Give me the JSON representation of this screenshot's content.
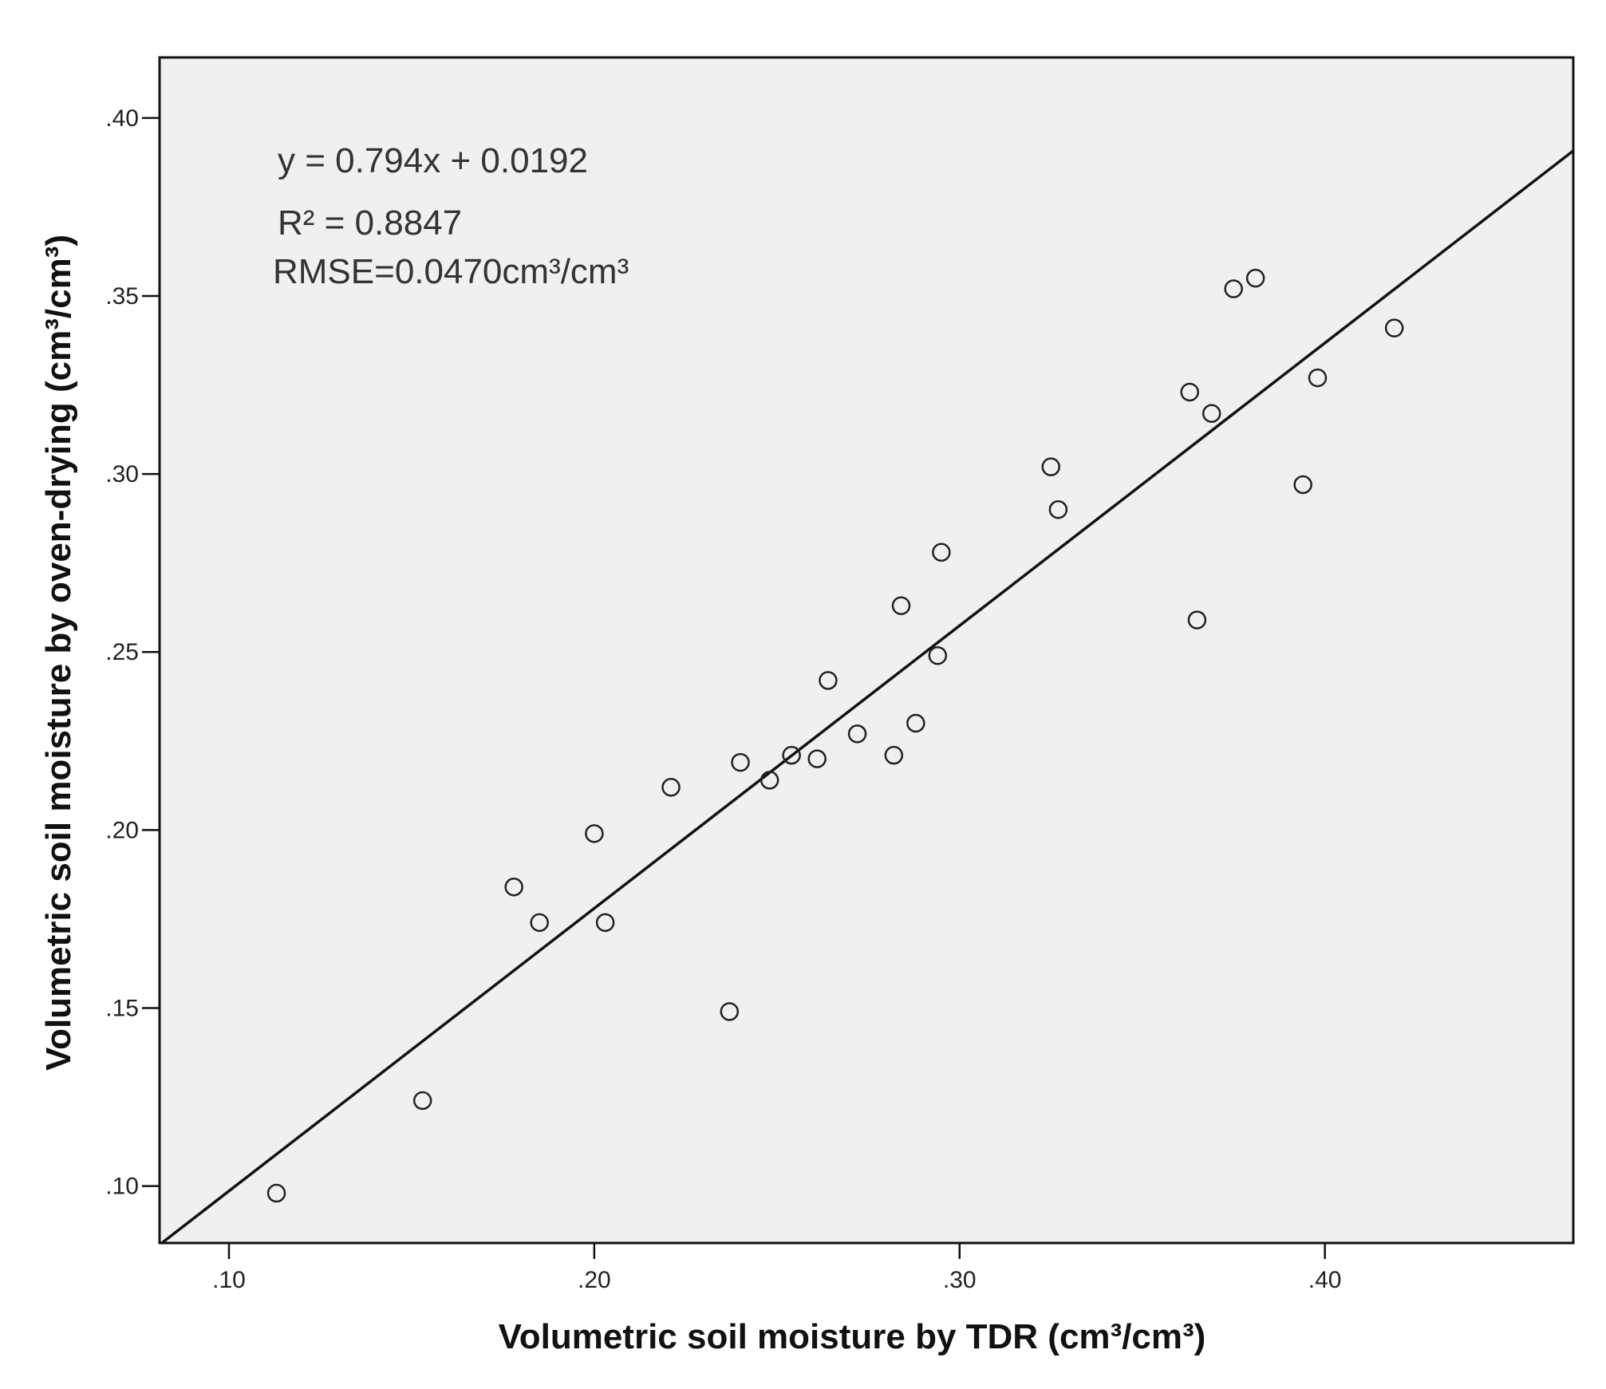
{
  "chart_data": {
    "type": "scatter",
    "title": "",
    "xlabel": "Volumetric soil moisture by TDR (cm³/cm³)",
    "ylabel": "Volumetric soil moisture by oven-drying (cm³/cm³)",
    "xlim": [
      0.081,
      0.468
    ],
    "ylim": [
      0.084,
      0.417
    ],
    "x_ticks": [
      0.1,
      0.2,
      0.3,
      0.4
    ],
    "x_tick_labels": [
      ".10",
      ".20",
      ".30",
      ".40"
    ],
    "y_ticks": [
      0.1,
      0.15,
      0.2,
      0.25,
      0.3,
      0.35,
      0.4
    ],
    "y_tick_labels": [
      ".10",
      ".15",
      ".20",
      ".25",
      ".30",
      ".35",
      ".40"
    ],
    "grid": false,
    "background_color": "#f0f0f0",
    "marker": "open-circle",
    "points": [
      {
        "x": 0.113,
        "y": 0.098
      },
      {
        "x": 0.153,
        "y": 0.124
      },
      {
        "x": 0.178,
        "y": 0.184
      },
      {
        "x": 0.185,
        "y": 0.174
      },
      {
        "x": 0.2,
        "y": 0.199
      },
      {
        "x": 0.203,
        "y": 0.174
      },
      {
        "x": 0.221,
        "y": 0.212
      },
      {
        "x": 0.237,
        "y": 0.149
      },
      {
        "x": 0.24,
        "y": 0.219
      },
      {
        "x": 0.248,
        "y": 0.214
      },
      {
        "x": 0.254,
        "y": 0.221
      },
      {
        "x": 0.261,
        "y": 0.22
      },
      {
        "x": 0.264,
        "y": 0.242
      },
      {
        "x": 0.272,
        "y": 0.227
      },
      {
        "x": 0.282,
        "y": 0.221
      },
      {
        "x": 0.284,
        "y": 0.263
      },
      {
        "x": 0.288,
        "y": 0.23
      },
      {
        "x": 0.294,
        "y": 0.249
      },
      {
        "x": 0.295,
        "y": 0.278
      },
      {
        "x": 0.325,
        "y": 0.302
      },
      {
        "x": 0.327,
        "y": 0.29
      },
      {
        "x": 0.363,
        "y": 0.323
      },
      {
        "x": 0.365,
        "y": 0.259
      },
      {
        "x": 0.369,
        "y": 0.317
      },
      {
        "x": 0.375,
        "y": 0.352
      },
      {
        "x": 0.381,
        "y": 0.355
      },
      {
        "x": 0.394,
        "y": 0.297
      },
      {
        "x": 0.398,
        "y": 0.327
      },
      {
        "x": 0.419,
        "y": 0.341
      }
    ],
    "fit_line": {
      "slope": 0.794,
      "intercept": 0.0192
    },
    "annotations": [
      "y = 0.794x + 0.0192",
      "R² = 0.8847",
      "RMSE=0.0470cm³/cm³"
    ]
  }
}
